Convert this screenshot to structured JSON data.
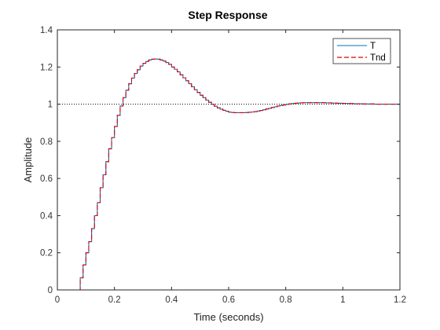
{
  "chart_data": {
    "type": "line",
    "title": "Step Response",
    "xlabel": "Time (seconds)",
    "ylabel": "Amplitude",
    "xlim": [
      0,
      1.2
    ],
    "ylim": [
      0,
      1.4
    ],
    "xticks": [
      "0",
      "0.2",
      "0.4",
      "0.6",
      "0.8",
      "1",
      "1.2"
    ],
    "yticks": [
      "0",
      "0.2",
      "0.4",
      "0.6",
      "0.8",
      "1",
      "1.2",
      "1.4"
    ],
    "grid": false,
    "legend_position": "top-right",
    "reference_line": {
      "y": 1,
      "style": "dotted",
      "color": "#000000"
    },
    "sample_time": 0.01,
    "x": [
      0,
      0.01,
      0.02,
      0.03,
      0.04,
      0.05,
      0.06,
      0.07,
      0.08,
      0.09,
      0.1,
      0.11,
      0.12,
      0.13,
      0.14,
      0.15,
      0.16,
      0.17,
      0.18,
      0.19,
      0.2,
      0.21,
      0.22,
      0.23,
      0.24,
      0.25,
      0.26,
      0.27,
      0.28,
      0.29,
      0.3,
      0.31,
      0.32,
      0.33,
      0.34,
      0.35,
      0.36,
      0.37,
      0.38,
      0.39,
      0.4,
      0.41,
      0.42,
      0.43,
      0.44,
      0.45,
      0.46,
      0.47,
      0.48,
      0.49,
      0.5,
      0.51,
      0.52,
      0.53,
      0.54,
      0.55,
      0.56,
      0.57,
      0.58,
      0.59,
      0.6,
      0.61,
      0.62,
      0.63,
      0.64,
      0.65,
      0.66,
      0.67,
      0.68,
      0.69,
      0.7,
      0.71,
      0.72,
      0.73,
      0.74,
      0.75,
      0.76,
      0.77,
      0.78,
      0.79,
      0.8,
      0.81,
      0.82,
      0.83,
      0.84,
      0.85,
      0.86,
      0.87,
      0.88,
      0.89,
      0.9,
      0.91,
      0.92,
      0.93,
      0.94,
      0.95,
      0.96,
      0.97,
      0.98,
      0.99,
      1.0,
      1.01,
      1.02,
      1.03,
      1.04,
      1.05,
      1.06,
      1.07,
      1.08,
      1.09,
      1.1,
      1.11,
      1.12,
      1.13,
      1.14,
      1.15,
      1.16,
      1.17,
      1.18,
      1.19,
      1.2
    ],
    "series": [
      {
        "name": "T",
        "color": "#0072BD",
        "style": "solid",
        "values": [
          0,
          0,
          0,
          0,
          0,
          0,
          0,
          0,
          0.065,
          0.135,
          0.2,
          0.26,
          0.33,
          0.4,
          0.47,
          0.55,
          0.62,
          0.69,
          0.76,
          0.82,
          0.88,
          0.94,
          0.99,
          1.035,
          1.075,
          1.11,
          1.14,
          1.165,
          1.185,
          1.205,
          1.22,
          1.23,
          1.238,
          1.242,
          1.243,
          1.242,
          1.238,
          1.232,
          1.224,
          1.214,
          1.2,
          1.188,
          1.174,
          1.158,
          1.142,
          1.126,
          1.11,
          1.094,
          1.078,
          1.063,
          1.048,
          1.035,
          1.022,
          1.01,
          0.999,
          0.989,
          0.98,
          0.973,
          0.967,
          0.962,
          0.957,
          0.955,
          0.954,
          0.954,
          0.954,
          0.954,
          0.955,
          0.956,
          0.958,
          0.96,
          0.963,
          0.966,
          0.97,
          0.974,
          0.978,
          0.982,
          0.986,
          0.99,
          0.993,
          0.996,
          0.999,
          1.001,
          1.003,
          1.005,
          1.006,
          1.007,
          1.008,
          1.008,
          1.008,
          1.008,
          1.008,
          1.008,
          1.008,
          1.008,
          1.007,
          1.007,
          1.006,
          1.006,
          1.005,
          1.005,
          1.004,
          1.004,
          1.003,
          1.003,
          1.002,
          1.002,
          1.002,
          1.001,
          1.001,
          1.001,
          1.001,
          1.0,
          1.0,
          1.0,
          1.0,
          1.0,
          1.0,
          1.0,
          1.0,
          1.0,
          1.0
        ]
      },
      {
        "name": "Tnd",
        "color": "#E00000",
        "style": "dashed",
        "values": [
          0,
          0,
          0,
          0,
          0,
          0,
          0,
          0,
          0.065,
          0.135,
          0.2,
          0.26,
          0.33,
          0.4,
          0.47,
          0.55,
          0.62,
          0.69,
          0.76,
          0.82,
          0.88,
          0.94,
          0.99,
          1.035,
          1.075,
          1.11,
          1.14,
          1.165,
          1.185,
          1.205,
          1.22,
          1.23,
          1.238,
          1.242,
          1.243,
          1.242,
          1.238,
          1.232,
          1.224,
          1.214,
          1.2,
          1.188,
          1.174,
          1.158,
          1.142,
          1.126,
          1.11,
          1.094,
          1.078,
          1.063,
          1.048,
          1.035,
          1.022,
          1.01,
          0.999,
          0.989,
          0.98,
          0.973,
          0.967,
          0.962,
          0.957,
          0.955,
          0.954,
          0.954,
          0.954,
          0.954,
          0.955,
          0.956,
          0.958,
          0.96,
          0.963,
          0.966,
          0.97,
          0.974,
          0.978,
          0.982,
          0.986,
          0.99,
          0.993,
          0.996,
          0.999,
          1.001,
          1.003,
          1.005,
          1.006,
          1.007,
          1.008,
          1.008,
          1.008,
          1.008,
          1.008,
          1.008,
          1.008,
          1.008,
          1.007,
          1.007,
          1.006,
          1.006,
          1.005,
          1.005,
          1.004,
          1.004,
          1.003,
          1.003,
          1.002,
          1.002,
          1.002,
          1.001,
          1.001,
          1.001,
          1.001,
          1.0,
          1.0,
          1.0,
          1.0,
          1.0,
          1.0,
          1.0,
          1.0,
          1.0,
          1.0
        ]
      }
    ]
  }
}
